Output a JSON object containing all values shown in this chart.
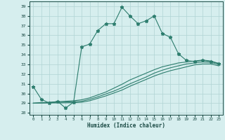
{
  "xlabel": "Humidex (Indice chaleur)",
  "ylabel": "",
  "xlim": [
    -0.5,
    23.5
  ],
  "ylim": [
    27.8,
    39.5
  ],
  "yticks": [
    28,
    29,
    30,
    31,
    32,
    33,
    34,
    35,
    36,
    37,
    38,
    39
  ],
  "xticks": [
    0,
    1,
    2,
    3,
    4,
    5,
    6,
    7,
    8,
    9,
    10,
    11,
    12,
    13,
    14,
    15,
    16,
    17,
    18,
    19,
    20,
    21,
    22,
    23
  ],
  "bg_color": "#d6eeee",
  "line_color": "#2d7d6e",
  "grid_color": "#b0d4d4",
  "series": [
    {
      "x": [
        0,
        1,
        2,
        3,
        4,
        5,
        6,
        7,
        8,
        9,
        10,
        11,
        12,
        13,
        14,
        15,
        16,
        17,
        18,
        19,
        20,
        21,
        22,
        23
      ],
      "y": [
        30.7,
        29.4,
        29.0,
        29.2,
        28.5,
        29.1,
        34.8,
        35.1,
        36.5,
        37.2,
        37.2,
        38.9,
        38.0,
        37.2,
        37.5,
        38.0,
        36.2,
        35.8,
        34.1,
        33.4,
        33.3,
        33.4,
        33.3,
        33.1
      ],
      "marker": true
    },
    {
      "x": [
        0,
        5,
        6,
        7,
        8,
        9,
        10,
        11,
        12,
        13,
        14,
        15,
        16,
        17,
        18,
        19,
        20,
        21,
        22,
        23
      ],
      "y": [
        29.0,
        29.25,
        29.35,
        29.55,
        29.85,
        30.15,
        30.55,
        30.95,
        31.4,
        31.75,
        32.1,
        32.45,
        32.75,
        32.95,
        33.15,
        33.25,
        33.35,
        33.45,
        33.35,
        33.1
      ],
      "marker": false
    },
    {
      "x": [
        0,
        5,
        6,
        7,
        8,
        9,
        10,
        11,
        12,
        13,
        14,
        15,
        16,
        17,
        18,
        19,
        20,
        21,
        22,
        23
      ],
      "y": [
        29.0,
        29.15,
        29.2,
        29.4,
        29.65,
        29.95,
        30.25,
        30.6,
        31.0,
        31.35,
        31.7,
        32.1,
        32.4,
        32.65,
        32.85,
        33.05,
        33.15,
        33.25,
        33.2,
        33.0
      ],
      "marker": false
    },
    {
      "x": [
        0,
        5,
        6,
        7,
        8,
        9,
        10,
        11,
        12,
        13,
        14,
        15,
        16,
        17,
        18,
        19,
        20,
        21,
        22,
        23
      ],
      "y": [
        29.0,
        29.05,
        29.1,
        29.25,
        29.5,
        29.75,
        30.05,
        30.35,
        30.75,
        31.1,
        31.45,
        31.8,
        32.1,
        32.35,
        32.55,
        32.75,
        32.95,
        33.05,
        33.05,
        32.85
      ],
      "marker": false
    }
  ]
}
